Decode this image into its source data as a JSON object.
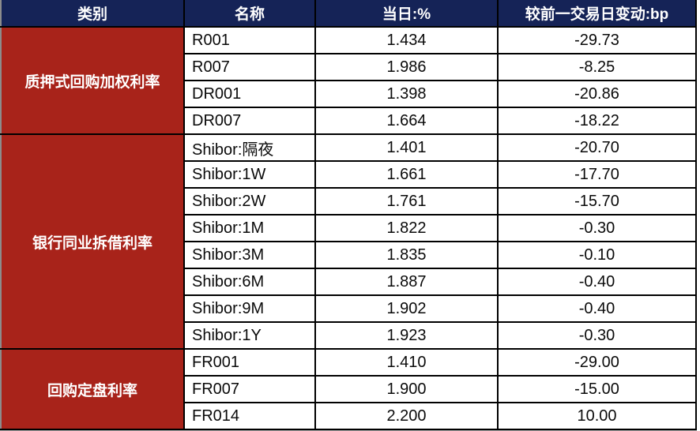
{
  "colors": {
    "header_bg": "#152357",
    "category_bg": "#A8231A",
    "grid_border": "#000000",
    "header_text": "#FFFFFF",
    "cell_text": "#0A0A0A"
  },
  "table": {
    "headers": [
      "类别",
      "名称",
      "当日:%",
      "较前一交易日变动:bp"
    ],
    "groups": [
      {
        "category": "质押式回购加权利率",
        "rows": [
          {
            "name": "R001",
            "rate": "1.434",
            "change": "-29.73"
          },
          {
            "name": "R007",
            "rate": "1.986",
            "change": "-8.25"
          },
          {
            "name": "DR001",
            "rate": "1.398",
            "change": "-20.86"
          },
          {
            "name": "DR007",
            "rate": "1.664",
            "change": "-18.22"
          }
        ]
      },
      {
        "category": "银行同业拆借利率",
        "rows": [
          {
            "name": "Shibor:隔夜",
            "rate": "1.401",
            "change": "-20.70"
          },
          {
            "name": "Shibor:1W",
            "rate": "1.661",
            "change": "-17.70"
          },
          {
            "name": "Shibor:2W",
            "rate": "1.761",
            "change": "-15.70"
          },
          {
            "name": "Shibor:1M",
            "rate": "1.822",
            "change": "-0.30"
          },
          {
            "name": "Shibor:3M",
            "rate": "1.835",
            "change": "-0.10"
          },
          {
            "name": "Shibor:6M",
            "rate": "1.887",
            "change": "-0.40"
          },
          {
            "name": "Shibor:9M",
            "rate": "1.902",
            "change": "-0.40"
          },
          {
            "name": "Shibor:1Y",
            "rate": "1.923",
            "change": "-0.30"
          }
        ]
      },
      {
        "category": "回购定盘利率",
        "rows": [
          {
            "name": "FR001",
            "rate": "1.410",
            "change": "-29.00"
          },
          {
            "name": "FR007",
            "rate": "1.900",
            "change": "-15.00"
          },
          {
            "name": "FR014",
            "rate": "2.200",
            "change": "10.00"
          }
        ]
      }
    ]
  },
  "chart_data": {
    "type": "table",
    "title": "",
    "columns": [
      "类别",
      "名称",
      "当日:%",
      "较前一交易日变动:bp"
    ],
    "rows": [
      [
        "质押式回购加权利率",
        "R001",
        1.434,
        -29.73
      ],
      [
        "质押式回购加权利率",
        "R007",
        1.986,
        -8.25
      ],
      [
        "质押式回购加权利率",
        "DR001",
        1.398,
        -20.86
      ],
      [
        "质押式回购加权利率",
        "DR007",
        1.664,
        -18.22
      ],
      [
        "银行同业拆借利率",
        "Shibor:隔夜",
        1.401,
        -20.7
      ],
      [
        "银行同业拆借利率",
        "Shibor:1W",
        1.661,
        -17.7
      ],
      [
        "银行同业拆借利率",
        "Shibor:2W",
        1.761,
        -15.7
      ],
      [
        "银行同业拆借利率",
        "Shibor:1M",
        1.822,
        -0.3
      ],
      [
        "银行同业拆借利率",
        "Shibor:3M",
        1.835,
        -0.1
      ],
      [
        "银行同业拆借利率",
        "Shibor:6M",
        1.887,
        -0.4
      ],
      [
        "银行同业拆借利率",
        "Shibor:9M",
        1.902,
        -0.4
      ],
      [
        "银行同业拆借利率",
        "Shibor:1Y",
        1.923,
        -0.3
      ],
      [
        "回购定盘利率",
        "FR001",
        1.41,
        -29.0
      ],
      [
        "回购定盘利率",
        "FR007",
        1.9,
        -15.0
      ],
      [
        "回购定盘利率",
        "FR014",
        2.2,
        10.0
      ]
    ]
  }
}
